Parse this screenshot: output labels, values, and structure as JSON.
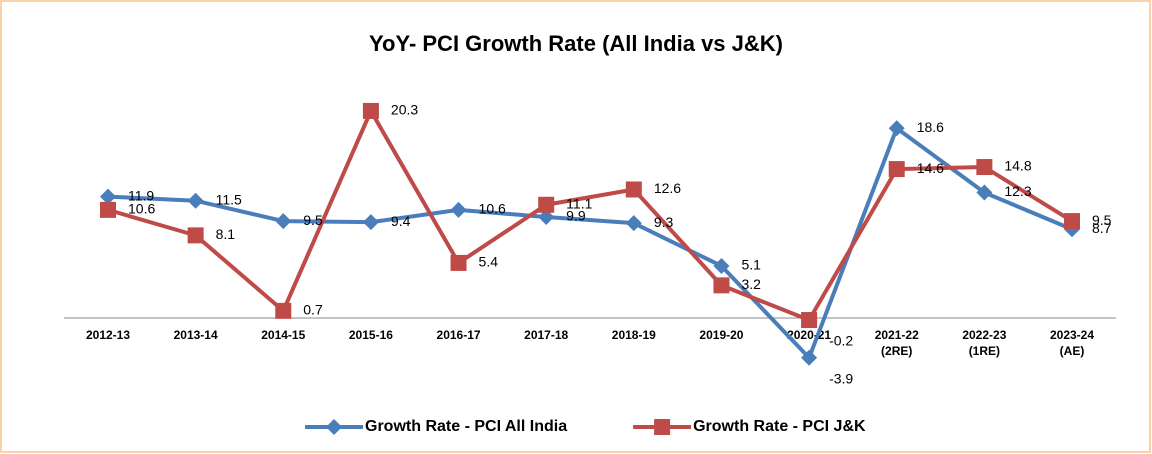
{
  "chart_data": {
    "type": "line",
    "title": "YoY- PCI Growth Rate (All India vs J&K)",
    "categories": [
      "2012-13",
      "2013-14",
      "2014-15",
      "2015-16",
      "2016-17",
      "2017-18",
      "2018-19",
      "2019-20",
      "2020-21",
      "2021-22 (2RE)",
      "2022-23 (1RE)",
      "2023-24 (AE)"
    ],
    "series": [
      {
        "name": "Growth Rate - PCI All India",
        "color": "#4a7ebb",
        "marker": "diamond",
        "values": [
          11.9,
          11.5,
          9.5,
          9.4,
          10.6,
          9.9,
          9.3,
          5.1,
          -3.9,
          18.6,
          12.3,
          8.7
        ]
      },
      {
        "name": "Growth Rate - PCI J&K",
        "color": "#be4b48",
        "marker": "square",
        "values": [
          10.6,
          8.1,
          0.7,
          20.3,
          5.4,
          11.1,
          12.6,
          3.2,
          -0.2,
          14.6,
          14.8,
          9.5
        ]
      }
    ],
    "ylim": [
      -5,
      25
    ],
    "legend": "bottom"
  }
}
